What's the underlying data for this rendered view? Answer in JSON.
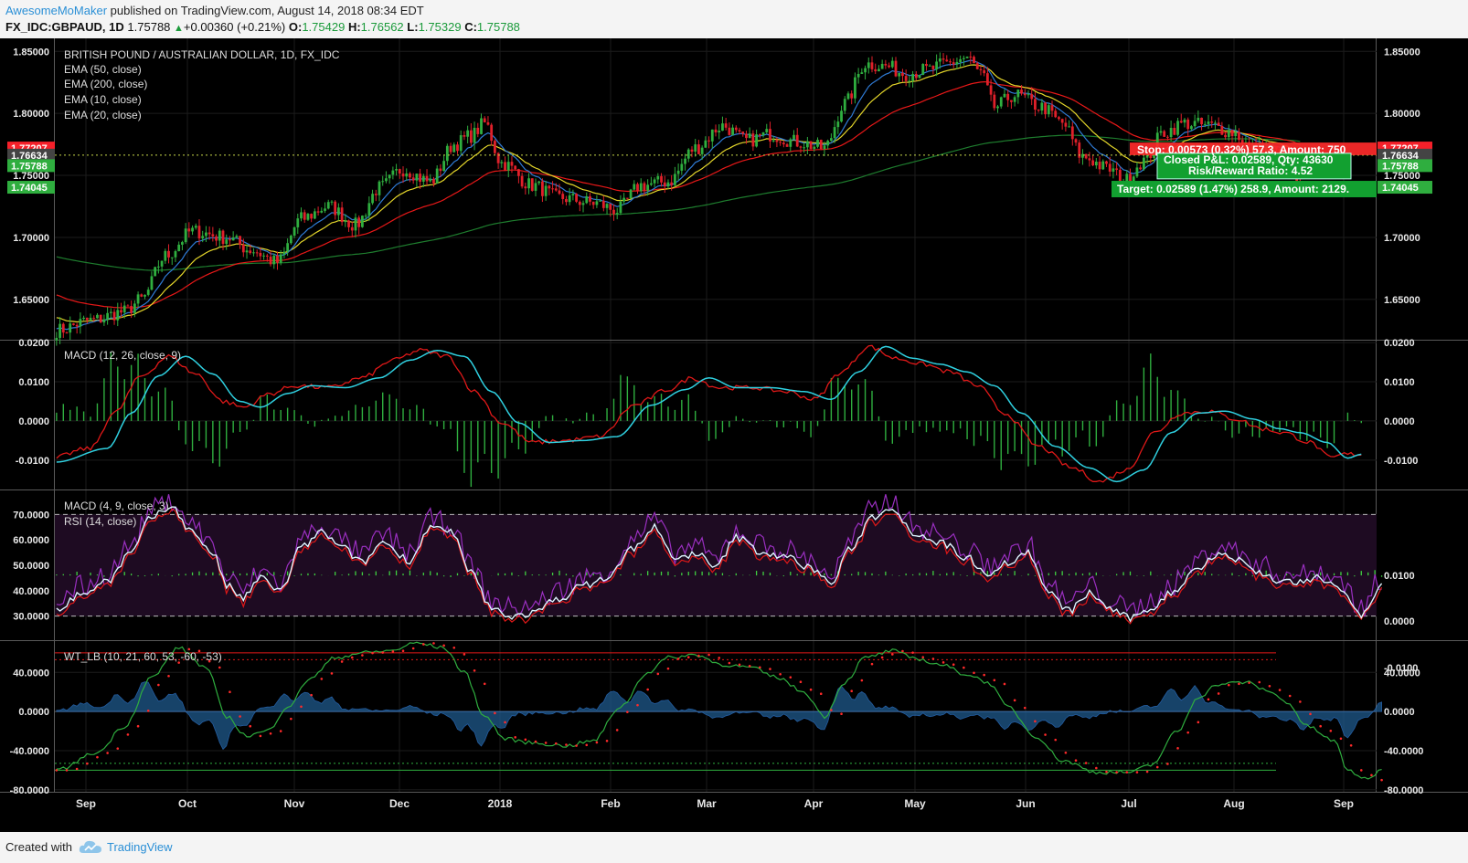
{
  "header": {
    "author": "AwesomeMoMaker",
    "published": "published on TradingView.com, August 14, 2018 08:34 EDT",
    "symbol": "FX_IDC:GBPAUD, 1D",
    "last": "1.75788",
    "change": "+0.00360 (+0.21%)",
    "o_label": "O:",
    "o_val": "1.75429",
    "h_label": "H:",
    "h_val": "1.76562",
    "l_label": "L:",
    "l_val": "1.75329",
    "c_label": "C:",
    "c_val": "1.75788"
  },
  "footer": {
    "created": "Created with",
    "brand": "TradingView"
  },
  "colors": {
    "background": "#000000",
    "up": "#2fae3f",
    "down": "#e0202a",
    "ema50": "#e81818",
    "ema200": "#1e7d2e",
    "ema10": "#2f7bd6",
    "ema20": "#e3d52a",
    "macd": "#2fd0e0",
    "signal": "#e01818",
    "rsi": "#9a2fc0",
    "rsiBand": "#1e0b22"
  },
  "chart_data": [
    {
      "type": "candlestick",
      "title": "BRITISH POUND / AUSTRALIAN DOLLAR, 1D, FX_IDC",
      "legend": [
        "EMA (50, close)",
        "EMA (200, close)",
        "EMA (10, close)",
        "EMA (20, close)"
      ],
      "x_ticks": [
        "Sep",
        "Oct",
        "Nov",
        "Dec",
        "2018",
        "Feb",
        "Mar",
        "Apr",
        "May",
        "Jun",
        "Jul",
        "Aug",
        "Sep"
      ],
      "ylim": [
        1.6175,
        1.8605
      ],
      "y_ticks": [
        "1.85000",
        "1.80000",
        "1.75000",
        "1.70000",
        "1.65000"
      ],
      "price_labels": [
        {
          "value": 1.77207,
          "text": "1.77207",
          "color": "#f5202a"
        },
        {
          "value": 1.76634,
          "text": "1.76634",
          "color": "#444444"
        },
        {
          "value": 1.75788,
          "text": "1.75788",
          "color": "#2fae3f"
        },
        {
          "value": 1.74045,
          "text": "1.74045",
          "color": "#2fae3f"
        }
      ],
      "close_anchors": [
        [
          0,
          1.625
        ],
        [
          10,
          1.633
        ],
        [
          20,
          1.64
        ],
        [
          25,
          1.65
        ],
        [
          32,
          1.685
        ],
        [
          40,
          1.705
        ],
        [
          50,
          1.7
        ],
        [
          57,
          1.69
        ],
        [
          65,
          1.68
        ],
        [
          72,
          1.715
        ],
        [
          80,
          1.725
        ],
        [
          88,
          1.71
        ],
        [
          95,
          1.74
        ],
        [
          102,
          1.755
        ],
        [
          110,
          1.745
        ],
        [
          117,
          1.775
        ],
        [
          122,
          1.782
        ],
        [
          126,
          1.792
        ],
        [
          131,
          1.76
        ],
        [
          140,
          1.742
        ],
        [
          148,
          1.732
        ],
        [
          158,
          1.728
        ],
        [
          165,
          1.722
        ],
        [
          172,
          1.742
        ],
        [
          180,
          1.745
        ],
        [
          188,
          1.772
        ],
        [
          196,
          1.79
        ],
        [
          203,
          1.778
        ],
        [
          210,
          1.783
        ],
        [
          218,
          1.777
        ],
        [
          226,
          1.772
        ],
        [
          232,
          1.808
        ],
        [
          238,
          1.84
        ],
        [
          244,
          1.838
        ],
        [
          250,
          1.832
        ],
        [
          256,
          1.835
        ],
        [
          262,
          1.84
        ],
        [
          268,
          1.845
        ],
        [
          272,
          1.832
        ],
        [
          276,
          1.805
        ],
        [
          282,
          1.815
        ],
        [
          290,
          1.805
        ],
        [
          296,
          1.792
        ],
        [
          302,
          1.765
        ],
        [
          310,
          1.755
        ],
        [
          314,
          1.745
        ],
        [
          320,
          1.762
        ],
        [
          326,
          1.785
        ],
        [
          332,
          1.792
        ],
        [
          340,
          1.79
        ],
        [
          346,
          1.785
        ],
        [
          352,
          1.772
        ],
        [
          358,
          1.77
        ],
        [
          363,
          1.762
        ],
        [
          366,
          1.74
        ]
      ],
      "ema_initial": {
        "ema10": 1.628,
        "ema20": 1.637,
        "ema50": 1.655,
        "ema200": 1.685
      },
      "position_tool": {
        "stop_label": "Stop: 0.00573 (0.32%) 57.3, Amount: 750",
        "stop_level": 1.77207,
        "entry_level": 1.76634,
        "pnl_label": "Closed P&L: 0.02589, Qty: 43630",
        "ratio_label": "Risk/Reward Ratio: 4.52",
        "target_label": "Target: 0.02589 (1.47%) 258.9, Amount: 2129.",
        "target_level": 1.74045
      }
    },
    {
      "type": "histogram+line",
      "title": "MACD (12, 26, close, 9)",
      "ylim": [
        -0.0175,
        0.0205
      ],
      "y_ticks": [
        "0.0200",
        "0.0100",
        "0.0000",
        "-0.0100"
      ],
      "macd_anchors": [
        [
          0,
          -0.0105
        ],
        [
          15,
          -0.007
        ],
        [
          22,
          0.002
        ],
        [
          30,
          0.0115
        ],
        [
          38,
          0.0165
        ],
        [
          46,
          0.012
        ],
        [
          54,
          0.005
        ],
        [
          60,
          0.0035
        ],
        [
          68,
          0.007
        ],
        [
          75,
          0.009
        ],
        [
          85,
          0.0085
        ],
        [
          95,
          0.011
        ],
        [
          104,
          0.0155
        ],
        [
          112,
          0.018
        ],
        [
          120,
          0.0165
        ],
        [
          128,
          0.0075
        ],
        [
          136,
          -0.0005
        ],
        [
          145,
          -0.0055
        ],
        [
          155,
          -0.005
        ],
        [
          165,
          -0.004
        ],
        [
          175,
          0.004
        ],
        [
          185,
          0.008
        ],
        [
          192,
          0.011
        ],
        [
          200,
          0.0085
        ],
        [
          210,
          0.0085
        ],
        [
          220,
          0.0075
        ],
        [
          228,
          0.0055
        ],
        [
          236,
          0.0125
        ],
        [
          244,
          0.019
        ],
        [
          252,
          0.016
        ],
        [
          260,
          0.0145
        ],
        [
          268,
          0.0125
        ],
        [
          276,
          0.009
        ],
        [
          284,
          0.002
        ],
        [
          294,
          -0.0065
        ],
        [
          304,
          -0.012
        ],
        [
          312,
          -0.0155
        ],
        [
          320,
          -0.0125
        ],
        [
          328,
          -0.003
        ],
        [
          336,
          0.002
        ],
        [
          344,
          0.0025
        ],
        [
          352,
          0.0005
        ],
        [
          360,
          -0.002
        ],
        [
          366,
          -0.003
        ],
        [
          374,
          -0.0055
        ],
        [
          380,
          -0.0095
        ],
        [
          384,
          -0.0085
        ]
      ],
      "signal_lag": 5
    },
    {
      "type": "line+histogram",
      "legend": [
        "MACD (4, 9, close, 3)",
        "RSI (14, close)"
      ],
      "rsi_ylim": [
        20.5,
        79.5
      ],
      "rsi_y_ticks": [
        "70.0000",
        "60.0000",
        "50.0000",
        "40.0000",
        "30.0000"
      ],
      "rsi_bands": [
        30,
        70
      ],
      "macd_y_ticks": [
        "0.0100",
        "0.0000",
        "-0.0100"
      ],
      "rsi_anchors": [
        [
          0,
          36
        ],
        [
          8,
          42
        ],
        [
          15,
          47
        ],
        [
          22,
          58
        ],
        [
          28,
          72
        ],
        [
          34,
          76
        ],
        [
          40,
          66
        ],
        [
          46,
          58
        ],
        [
          50,
          45
        ],
        [
          55,
          40
        ],
        [
          60,
          48
        ],
        [
          66,
          43
        ],
        [
          72,
          60
        ],
        [
          78,
          66
        ],
        [
          84,
          60
        ],
        [
          90,
          54
        ],
        [
          96,
          62
        ],
        [
          104,
          55
        ],
        [
          110,
          68
        ],
        [
          116,
          66
        ],
        [
          122,
          50
        ],
        [
          128,
          36
        ],
        [
          134,
          33
        ],
        [
          140,
          34
        ],
        [
          148,
          40
        ],
        [
          155,
          45
        ],
        [
          162,
          48
        ],
        [
          170,
          60
        ],
        [
          176,
          68
        ],
        [
          182,
          55
        ],
        [
          188,
          58
        ],
        [
          194,
          52
        ],
        [
          200,
          64
        ],
        [
          208,
          58
        ],
        [
          215,
          56
        ],
        [
          222,
          52
        ],
        [
          228,
          46
        ],
        [
          234,
          60
        ],
        [
          240,
          72
        ],
        [
          246,
          76
        ],
        [
          252,
          66
        ],
        [
          260,
          62
        ],
        [
          268,
          56
        ],
        [
          274,
          50
        ],
        [
          280,
          54
        ],
        [
          286,
          58
        ],
        [
          292,
          42
        ],
        [
          298,
          35
        ],
        [
          304,
          42
        ],
        [
          310,
          36
        ],
        [
          316,
          32
        ],
        [
          322,
          36
        ],
        [
          328,
          42
        ],
        [
          336,
          52
        ],
        [
          342,
          58
        ],
        [
          348,
          55
        ],
        [
          354,
          50
        ],
        [
          360,
          47
        ],
        [
          366,
          46
        ],
        [
          372,
          48
        ],
        [
          378,
          44
        ],
        [
          384,
          33
        ],
        [
          390,
          45
        ]
      ]
    },
    {
      "type": "line",
      "title": "WT_LB (10, 21, 60, 53, -60, -53)",
      "ylim": [
        -82,
        72
      ],
      "y_ticks": [
        "40.0000",
        "0.0000",
        "-40.0000",
        "-80.0000"
      ],
      "levels": [
        {
          "value": 60,
          "style": "solid",
          "color": "#e01818"
        },
        {
          "value": 53,
          "style": "dotted",
          "color": "#e01818"
        },
        {
          "value": -60,
          "style": "solid",
          "color": "#2fae3f"
        },
        {
          "value": -53,
          "style": "dotted",
          "color": "#2fae3f"
        }
      ],
      "wt_anchors": [
        [
          0,
          -60
        ],
        [
          12,
          -42
        ],
        [
          20,
          -15
        ],
        [
          28,
          35
        ],
        [
          36,
          65
        ],
        [
          44,
          45
        ],
        [
          50,
          -5
        ],
        [
          56,
          -25
        ],
        [
          62,
          -20
        ],
        [
          68,
          5
        ],
        [
          75,
          35
        ],
        [
          82,
          55
        ],
        [
          90,
          60
        ],
        [
          98,
          62
        ],
        [
          106,
          70
        ],
        [
          114,
          65
        ],
        [
          120,
          40
        ],
        [
          126,
          -5
        ],
        [
          132,
          -28
        ],
        [
          140,
          -32
        ],
        [
          150,
          -35
        ],
        [
          158,
          -30
        ],
        [
          166,
          5
        ],
        [
          174,
          40
        ],
        [
          180,
          55
        ],
        [
          188,
          58
        ],
        [
          196,
          48
        ],
        [
          204,
          45
        ],
        [
          212,
          35
        ],
        [
          220,
          20
        ],
        [
          226,
          -5
        ],
        [
          232,
          30
        ],
        [
          238,
          55
        ],
        [
          246,
          62
        ],
        [
          252,
          55
        ],
        [
          260,
          48
        ],
        [
          268,
          38
        ],
        [
          274,
          30
        ],
        [
          280,
          5
        ],
        [
          288,
          -25
        ],
        [
          296,
          -50
        ],
        [
          306,
          -62
        ],
        [
          316,
          -62
        ],
        [
          322,
          -55
        ],
        [
          330,
          -20
        ],
        [
          336,
          15
        ],
        [
          342,
          28
        ],
        [
          350,
          30
        ],
        [
          356,
          22
        ],
        [
          362,
          10
        ],
        [
          368,
          -15
        ],
        [
          376,
          -30
        ],
        [
          380,
          -60
        ],
        [
          386,
          -70
        ],
        [
          390,
          -58
        ]
      ]
    }
  ]
}
